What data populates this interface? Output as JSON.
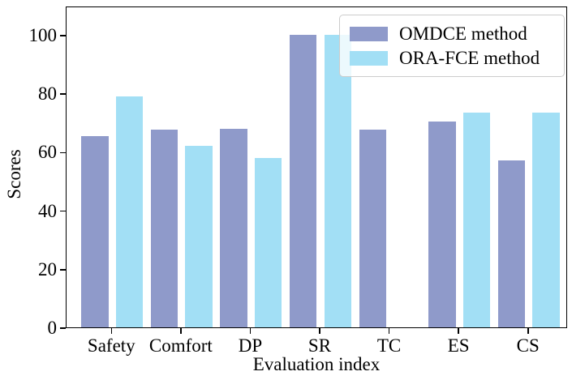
{
  "chart_data": {
    "type": "bar",
    "title": "",
    "xlabel": "Evaluation index",
    "ylabel": "Scores",
    "categories": [
      "Safety",
      "Comfort",
      "DP",
      "SR",
      "TC",
      "ES",
      "CS"
    ],
    "series": [
      {
        "name": "OMDCE method",
        "color": "#8f9aca",
        "values": [
          65.5,
          67.5,
          68,
          100,
          67.5,
          70.5,
          57
        ]
      },
      {
        "name": "ORA-FCE method",
        "color": "#a2dff5",
        "values": [
          79,
          62,
          58,
          100,
          null,
          73.5,
          73.5
        ]
      }
    ],
    "ylim": [
      0,
      110
    ],
    "yticks": [
      0,
      20,
      40,
      60,
      80,
      100
    ],
    "legend_position": "upper right",
    "grid": false,
    "background_color": "#ffffff",
    "axis_color": "#000000"
  }
}
